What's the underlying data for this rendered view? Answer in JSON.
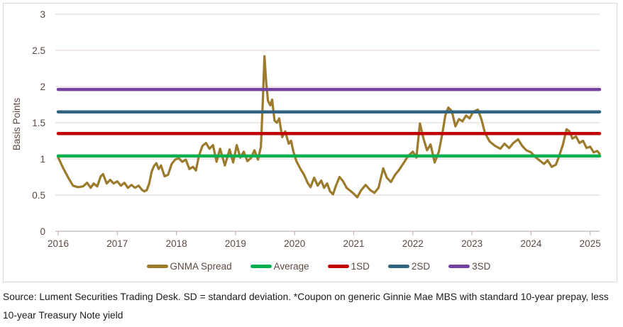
{
  "figure": {
    "source_note": "Source: Lument Securities Trading Desk. SD = standard deviation. *Coupon on generic Ginnie Mae MBS with standard 10-year prepay, less 10-year Treasury Note yield"
  },
  "colors": {
    "gnma": "#9C7B2D",
    "average": "#00B050",
    "sd1": "#C00000",
    "sd2": "#33647F",
    "sd3": "#7642A0",
    "gridline": "#E6DADA",
    "axis": "#C0B4AE",
    "tick_label": "#5B4A42",
    "border": "#D9D9D9",
    "background": "#FFFFFF"
  },
  "chart_data": {
    "type": "line",
    "title": "",
    "xlabel": "",
    "ylabel": "Basis Points",
    "xlim": [
      2016,
      2025.25
    ],
    "ylim": [
      0,
      3
    ],
    "grid": true,
    "legend_position": "bottom",
    "y_ticks": [
      0,
      0.5,
      1,
      1.5,
      2,
      2.5,
      3
    ],
    "y_tick_labels": [
      "0",
      "0.5",
      "1",
      "1.5",
      "2",
      "2.5",
      "3"
    ],
    "x_ticks": [
      2016,
      2017,
      2018,
      2019,
      2020,
      2021,
      2022,
      2023,
      2024,
      2025
    ],
    "x_tick_labels": [
      "2016",
      "2017",
      "2018",
      "2019",
      "2020",
      "2021",
      "2022",
      "2023",
      "2024",
      "2025"
    ],
    "reference_lines": [
      {
        "name": "Average",
        "value": 1.04,
        "color": "#00B050"
      },
      {
        "name": "1SD",
        "value": 1.35,
        "color": "#C00000"
      },
      {
        "name": "2SD",
        "value": 1.65,
        "color": "#33647F"
      },
      {
        "name": "3SD",
        "value": 1.96,
        "color": "#7642A0"
      }
    ],
    "series": [
      {
        "name": "GNMA Spread",
        "color": "#9C7B2D",
        "points": [
          [
            2016.0,
            1.02
          ],
          [
            2016.08,
            0.88
          ],
          [
            2016.17,
            0.74
          ],
          [
            2016.25,
            0.63
          ],
          [
            2016.33,
            0.61
          ],
          [
            2016.42,
            0.62
          ],
          [
            2016.49,
            0.67
          ],
          [
            2016.55,
            0.6
          ],
          [
            2016.6,
            0.66
          ],
          [
            2016.66,
            0.62
          ],
          [
            2016.72,
            0.76
          ],
          [
            2016.76,
            0.79
          ],
          [
            2016.82,
            0.66
          ],
          [
            2016.88,
            0.71
          ],
          [
            2016.94,
            0.66
          ],
          [
            2017.0,
            0.69
          ],
          [
            2017.06,
            0.63
          ],
          [
            2017.12,
            0.67
          ],
          [
            2017.18,
            0.6
          ],
          [
            2017.24,
            0.64
          ],
          [
            2017.3,
            0.6
          ],
          [
            2017.36,
            0.63
          ],
          [
            2017.42,
            0.57
          ],
          [
            2017.46,
            0.55
          ],
          [
            2017.5,
            0.57
          ],
          [
            2017.54,
            0.66
          ],
          [
            2017.58,
            0.82
          ],
          [
            2017.62,
            0.9
          ],
          [
            2017.66,
            0.94
          ],
          [
            2017.7,
            0.86
          ],
          [
            2017.74,
            0.91
          ],
          [
            2017.8,
            0.76
          ],
          [
            2017.86,
            0.78
          ],
          [
            2017.92,
            0.93
          ],
          [
            2017.98,
            0.99
          ],
          [
            2018.04,
            1.01
          ],
          [
            2018.1,
            0.96
          ],
          [
            2018.16,
            0.99
          ],
          [
            2018.22,
            0.86
          ],
          [
            2018.28,
            0.89
          ],
          [
            2018.33,
            0.84
          ],
          [
            2018.38,
            1.04
          ],
          [
            2018.44,
            1.18
          ],
          [
            2018.5,
            1.22
          ],
          [
            2018.56,
            1.14
          ],
          [
            2018.62,
            1.19
          ],
          [
            2018.68,
            0.96
          ],
          [
            2018.74,
            1.14
          ],
          [
            2018.82,
            0.91
          ],
          [
            2018.9,
            1.13
          ],
          [
            2018.96,
            0.95
          ],
          [
            2019.02,
            1.19
          ],
          [
            2019.08,
            1.02
          ],
          [
            2019.14,
            1.1
          ],
          [
            2019.2,
            0.97
          ],
          [
            2019.26,
            1.01
          ],
          [
            2019.32,
            1.12
          ],
          [
            2019.38,
            0.99
          ],
          [
            2019.43,
            1.17
          ],
          [
            2019.46,
            1.75
          ],
          [
            2019.49,
            2.42
          ],
          [
            2019.52,
            2.05
          ],
          [
            2019.55,
            1.8
          ],
          [
            2019.59,
            1.74
          ],
          [
            2019.62,
            1.82
          ],
          [
            2019.66,
            1.53
          ],
          [
            2019.7,
            1.5
          ],
          [
            2019.74,
            1.56
          ],
          [
            2019.79,
            1.3
          ],
          [
            2019.84,
            1.38
          ],
          [
            2019.9,
            1.21
          ],
          [
            2019.94,
            1.25
          ],
          [
            2019.98,
            1.1
          ],
          [
            2020.03,
            0.97
          ],
          [
            2020.1,
            0.86
          ],
          [
            2020.16,
            0.78
          ],
          [
            2020.22,
            0.67
          ],
          [
            2020.27,
            0.61
          ],
          [
            2020.33,
            0.74
          ],
          [
            2020.39,
            0.63
          ],
          [
            2020.45,
            0.7
          ],
          [
            2020.5,
            0.6
          ],
          [
            2020.55,
            0.66
          ],
          [
            2020.6,
            0.55
          ],
          [
            2020.65,
            0.51
          ],
          [
            2020.7,
            0.63
          ],
          [
            2020.76,
            0.75
          ],
          [
            2020.82,
            0.69
          ],
          [
            2020.88,
            0.6
          ],
          [
            2020.94,
            0.56
          ],
          [
            2021.0,
            0.52
          ],
          [
            2021.06,
            0.47
          ],
          [
            2021.12,
            0.56
          ],
          [
            2021.2,
            0.64
          ],
          [
            2021.28,
            0.57
          ],
          [
            2021.35,
            0.53
          ],
          [
            2021.42,
            0.6
          ],
          [
            2021.5,
            0.87
          ],
          [
            2021.56,
            0.74
          ],
          [
            2021.63,
            0.68
          ],
          [
            2021.7,
            0.78
          ],
          [
            2021.77,
            0.85
          ],
          [
            2021.85,
            0.95
          ],
          [
            2021.92,
            1.04
          ],
          [
            2022.0,
            1.1
          ],
          [
            2022.06,
            1.02
          ],
          [
            2022.12,
            1.49
          ],
          [
            2022.18,
            1.28
          ],
          [
            2022.24,
            1.12
          ],
          [
            2022.3,
            1.2
          ],
          [
            2022.37,
            0.95
          ],
          [
            2022.44,
            1.1
          ],
          [
            2022.5,
            1.35
          ],
          [
            2022.55,
            1.6
          ],
          [
            2022.6,
            1.71
          ],
          [
            2022.66,
            1.66
          ],
          [
            2022.72,
            1.45
          ],
          [
            2022.78,
            1.55
          ],
          [
            2022.84,
            1.52
          ],
          [
            2022.9,
            1.6
          ],
          [
            2022.96,
            1.56
          ],
          [
            2023.02,
            1.65
          ],
          [
            2023.1,
            1.68
          ],
          [
            2023.16,
            1.55
          ],
          [
            2023.22,
            1.36
          ],
          [
            2023.3,
            1.24
          ],
          [
            2023.39,
            1.18
          ],
          [
            2023.48,
            1.14
          ],
          [
            2023.55,
            1.21
          ],
          [
            2023.63,
            1.15
          ],
          [
            2023.7,
            1.22
          ],
          [
            2023.78,
            1.27
          ],
          [
            2023.85,
            1.18
          ],
          [
            2023.92,
            1.12
          ],
          [
            2024.0,
            1.09
          ],
          [
            2024.08,
            1.02
          ],
          [
            2024.16,
            0.97
          ],
          [
            2024.22,
            0.93
          ],
          [
            2024.28,
            0.98
          ],
          [
            2024.35,
            0.89
          ],
          [
            2024.42,
            0.92
          ],
          [
            2024.48,
            1.05
          ],
          [
            2024.54,
            1.2
          ],
          [
            2024.6,
            1.41
          ],
          [
            2024.65,
            1.38
          ],
          [
            2024.7,
            1.28
          ],
          [
            2024.76,
            1.31
          ],
          [
            2024.82,
            1.22
          ],
          [
            2024.88,
            1.25
          ],
          [
            2024.94,
            1.15
          ],
          [
            2025.0,
            1.17
          ],
          [
            2025.06,
            1.09
          ],
          [
            2025.12,
            1.11
          ],
          [
            2025.16,
            1.07
          ]
        ]
      }
    ]
  }
}
